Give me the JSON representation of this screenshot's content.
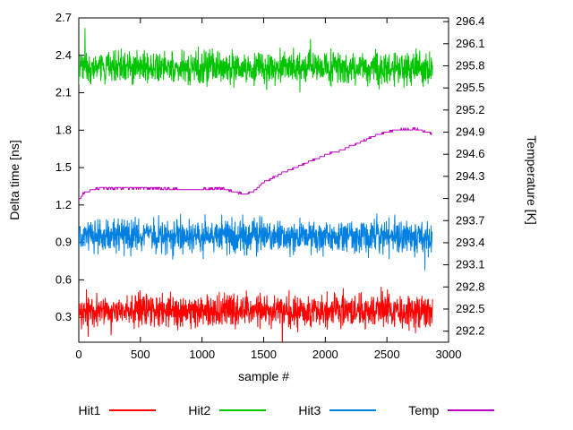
{
  "chart_data": {
    "type": "line",
    "title": "",
    "xlabel": "sample #",
    "ylabel_left": "Delta time [ns]",
    "ylabel_right": "Temperature [K]",
    "grid": false,
    "legend_position": "bottom",
    "x_range": [
      0,
      3000
    ],
    "x_ticks": [
      0,
      500,
      1000,
      1500,
      2000,
      2500,
      3000
    ],
    "left_axis": {
      "range": [
        0.1,
        2.7
      ],
      "ticks": [
        0.3,
        0.6,
        0.9,
        1.2,
        1.5,
        1.8,
        2.1,
        2.4,
        2.7
      ]
    },
    "right_axis": {
      "range": [
        292.05,
        296.45
      ],
      "ticks": [
        292.2,
        292.5,
        292.8,
        293.1,
        293.4,
        293.7,
        294,
        294.3,
        294.6,
        294.9,
        295.2,
        295.5,
        295.8,
        296.1,
        296.4
      ]
    },
    "series": [
      {
        "name": "Hit1",
        "color": "#ff0000",
        "axis": "left",
        "kind": "noise",
        "mean": 0.35,
        "sigma": 0.065,
        "n_samples": 2870
      },
      {
        "name": "Hit2",
        "color": "#00c400",
        "axis": "left",
        "kind": "noise",
        "mean": 2.3,
        "sigma": 0.065,
        "n_samples": 2870
      },
      {
        "name": "Hit3",
        "color": "#0080e1",
        "axis": "left",
        "kind": "noise",
        "mean": 0.95,
        "sigma": 0.065,
        "n_samples": 2870
      },
      {
        "name": "Temp",
        "color": "#c000c0",
        "axis": "right",
        "kind": "step",
        "points": [
          [
            0,
            293.98
          ],
          [
            40,
            294.08
          ],
          [
            150,
            294.14
          ],
          [
            600,
            294.14
          ],
          [
            900,
            294.12
          ],
          [
            1150,
            294.14
          ],
          [
            1260,
            294.09
          ],
          [
            1360,
            294.06
          ],
          [
            1420,
            294.1
          ],
          [
            1500,
            294.22
          ],
          [
            1600,
            294.3
          ],
          [
            1750,
            294.42
          ],
          [
            1900,
            294.52
          ],
          [
            2050,
            294.62
          ],
          [
            2150,
            294.67
          ],
          [
            2300,
            294.78
          ],
          [
            2450,
            294.88
          ],
          [
            2600,
            294.94
          ],
          [
            2750,
            294.94
          ],
          [
            2830,
            294.9
          ],
          [
            2870,
            294.87
          ]
        ]
      }
    ]
  }
}
